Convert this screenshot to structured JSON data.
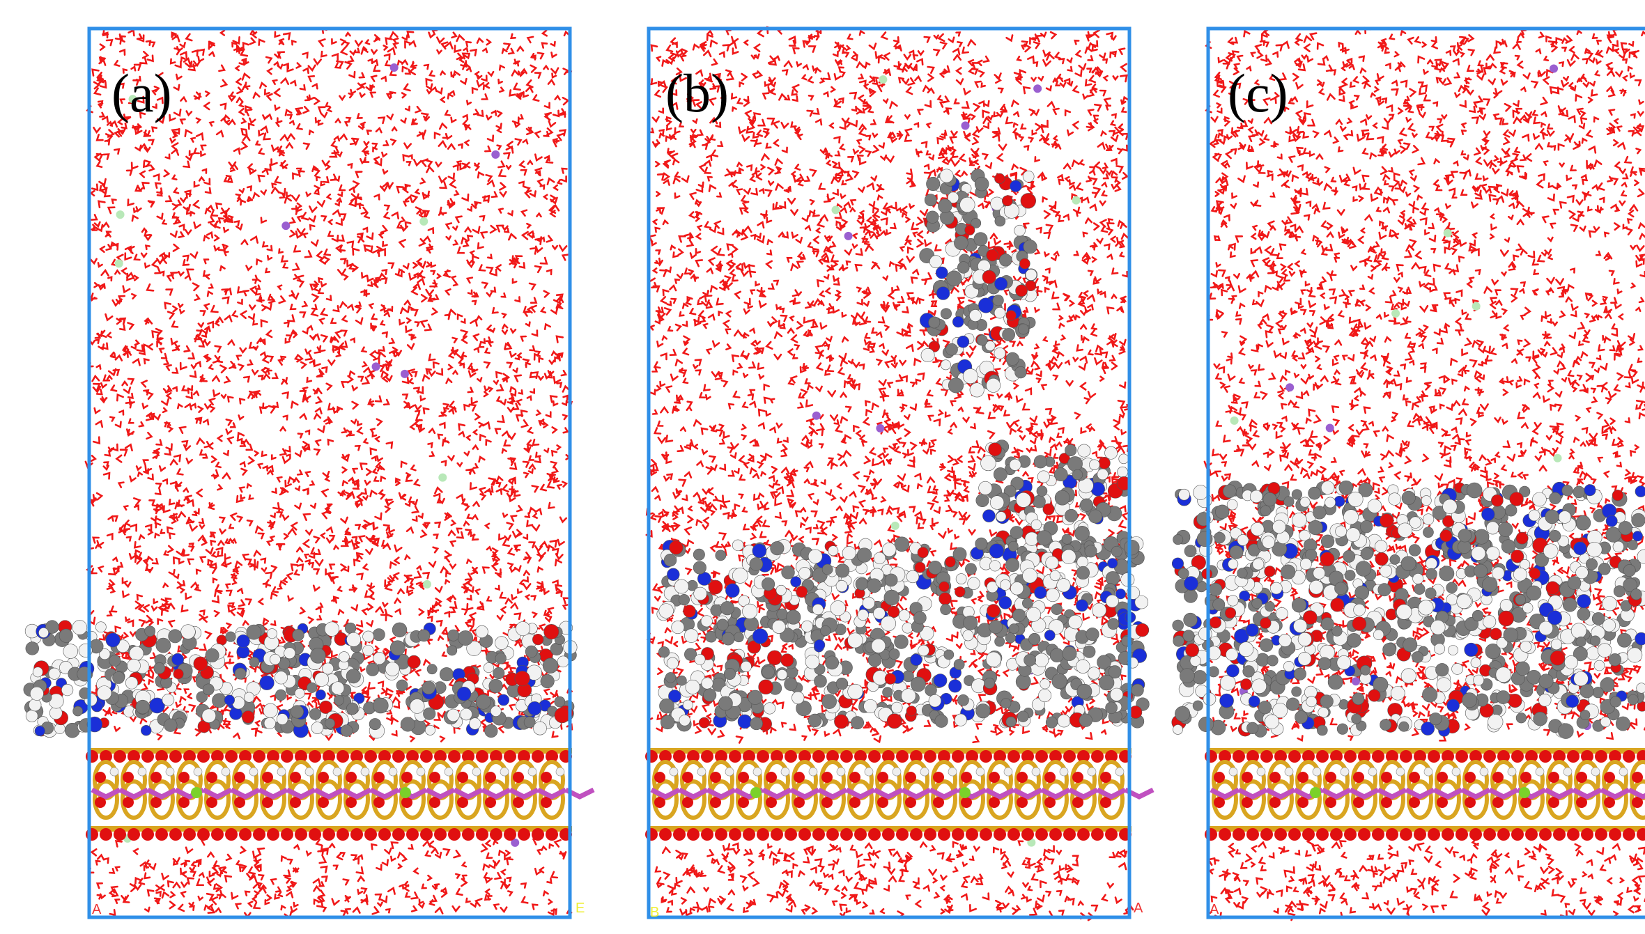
{
  "panels": [
    {
      "label": "(a)",
      "corner_left": "A",
      "corner_right": "E"
    },
    {
      "label": "(b)",
      "corner_left": "B",
      "corner_right": "A"
    },
    {
      "label": "(c)",
      "corner_left": "A"
    }
  ]
}
